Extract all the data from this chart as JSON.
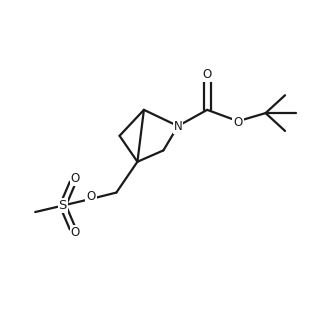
{
  "bg_color": "#ffffff",
  "line_color": "#1a1a1a",
  "line_width": 1.6,
  "font_size": 8.5,
  "xlim": [
    0.0,
    1.0
  ],
  "ylim": [
    0.0,
    1.0
  ]
}
